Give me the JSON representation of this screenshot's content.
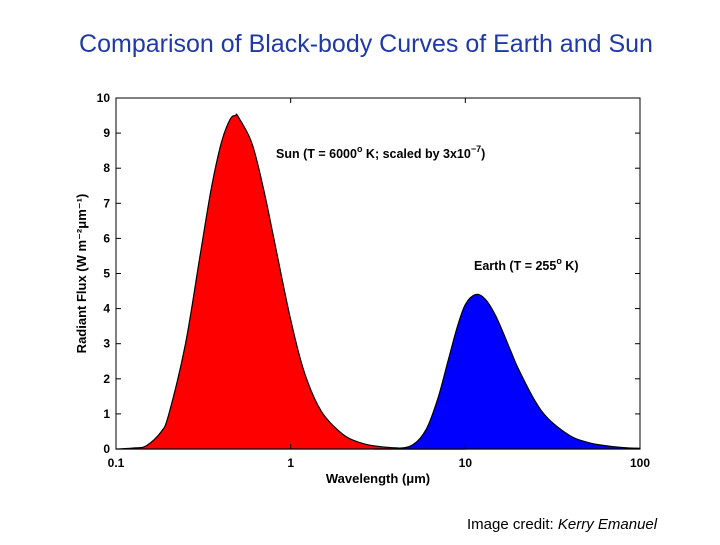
{
  "slide": {
    "title": "Comparison of Black-body Curves of Earth and Sun",
    "credit_prefix": "Image credit: ",
    "credit_name": "Kerry Emanuel"
  },
  "chart_data": {
    "type": "area",
    "title": "",
    "xlabel": "Wavelength (μm)",
    "ylabel": "Radiant Flux (W m⁻²μm⁻¹)",
    "xscale": "log",
    "xlim": [
      0.1,
      100
    ],
    "ylim": [
      0,
      10
    ],
    "xticks": [
      0.1,
      1,
      10,
      100
    ],
    "xtick_labels": [
      "0.1",
      "1",
      "10",
      "100"
    ],
    "yticks": [
      0,
      1,
      2,
      3,
      4,
      5,
      6,
      7,
      8,
      9,
      10
    ],
    "ytick_labels": [
      "0",
      "1",
      "2",
      "3",
      "4",
      "5",
      "6",
      "7",
      "8",
      "9",
      "10"
    ],
    "grid": false,
    "series": [
      {
        "label_parts": [
          "Sun (T = 6000",
          "o",
          " K; scaled by 3x10",
          "−7",
          ")"
        ],
        "color": "#ff0000",
        "peak": {
          "x": 0.483,
          "y": 9.5
        },
        "x": [
          0.1,
          0.13,
          0.15,
          0.18,
          0.2,
          0.25,
          0.3,
          0.35,
          0.4,
          0.45,
          0.483,
          0.5,
          0.6,
          0.7,
          0.8,
          1.0,
          1.2,
          1.5,
          2.0,
          2.5,
          3.0,
          4.0,
          5.0,
          6.0,
          8.0,
          10.0
        ],
        "y": [
          0.0,
          0.03,
          0.1,
          0.47,
          0.97,
          3.0,
          5.38,
          7.38,
          8.71,
          9.39,
          9.5,
          9.47,
          8.71,
          7.4,
          6.02,
          3.68,
          2.17,
          1.07,
          0.41,
          0.18,
          0.09,
          0.03,
          0.01,
          0.0,
          0.0,
          0.0
        ]
      },
      {
        "label_parts": [
          "Earth (T = 255",
          "o",
          " K)"
        ],
        "color": "#0000ff",
        "peak": {
          "x": 11.4,
          "y": 4.4
        },
        "x": [
          3.0,
          4.0,
          5.0,
          6.0,
          7.0,
          8.0,
          9.0,
          10.0,
          11.4,
          13.0,
          15.0,
          18.0,
          20.0,
          25.0,
          30.0,
          40.0,
          50.0,
          60.0,
          80.0,
          100.0
        ],
        "y": [
          0.0,
          0.01,
          0.12,
          0.58,
          1.48,
          2.55,
          3.48,
          4.11,
          4.4,
          4.27,
          3.77,
          2.85,
          2.31,
          1.38,
          0.85,
          0.37,
          0.19,
          0.11,
          0.04,
          0.02
        ]
      }
    ]
  }
}
